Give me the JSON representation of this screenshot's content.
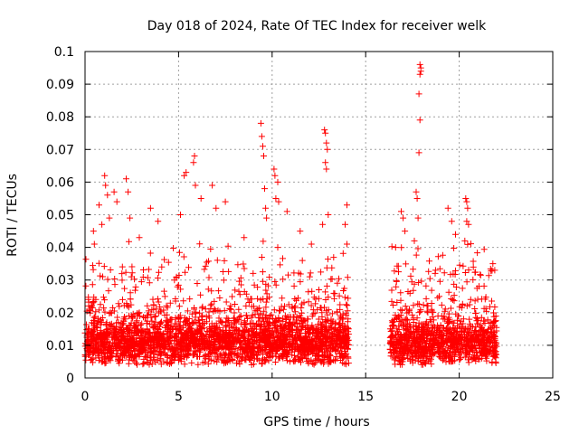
{
  "chart_data": {
    "type": "scatter",
    "title": "Day 018 of 2024, Rate Of TEC Index for receiver welk",
    "xlabel": "GPS time / hours",
    "ylabel": "ROTI / TECUs",
    "xlim": [
      0,
      25
    ],
    "ylim": [
      0,
      0.1
    ],
    "x_ticks": [
      0,
      5,
      10,
      15,
      20,
      25
    ],
    "x_tick_labels": [
      "0",
      "5",
      "10",
      "15",
      "20",
      "25"
    ],
    "y_ticks": [
      0,
      0.01,
      0.02,
      0.03,
      0.04,
      0.05,
      0.06,
      0.07,
      0.08,
      0.09,
      0.1
    ],
    "y_tick_labels": [
      "0",
      "0.01",
      "0.02",
      "0.03",
      "0.04",
      "0.05",
      "0.06",
      "0.07",
      "0.08",
      "0.09",
      "0.1"
    ],
    "grid": true,
    "marker": "+",
    "color": "#ff0000",
    "series": [
      {
        "name": "ROTI",
        "data_segments": [
          {
            "x_start": 0.0,
            "x_end": 14.1,
            "baseline_median": 0.011,
            "typical_max": 0.035
          },
          {
            "x_start": 16.3,
            "x_end": 22.0,
            "baseline_median": 0.011,
            "typical_max": 0.035
          }
        ],
        "notable_points": [
          {
            "x": 0.45,
            "y": 0.045
          },
          {
            "x": 0.5,
            "y": 0.041
          },
          {
            "x": 0.75,
            "y": 0.053
          },
          {
            "x": 0.9,
            "y": 0.047
          },
          {
            "x": 1.05,
            "y": 0.062
          },
          {
            "x": 1.1,
            "y": 0.059
          },
          {
            "x": 1.2,
            "y": 0.056
          },
          {
            "x": 1.3,
            "y": 0.049
          },
          {
            "x": 1.55,
            "y": 0.057
          },
          {
            "x": 1.7,
            "y": 0.054
          },
          {
            "x": 2.2,
            "y": 0.061
          },
          {
            "x": 2.3,
            "y": 0.057
          },
          {
            "x": 2.4,
            "y": 0.049
          },
          {
            "x": 2.9,
            "y": 0.043
          },
          {
            "x": 3.5,
            "y": 0.052
          },
          {
            "x": 3.9,
            "y": 0.048
          },
          {
            "x": 5.1,
            "y": 0.05
          },
          {
            "x": 5.3,
            "y": 0.062
          },
          {
            "x": 5.4,
            "y": 0.063
          },
          {
            "x": 5.8,
            "y": 0.066
          },
          {
            "x": 5.85,
            "y": 0.068
          },
          {
            "x": 5.9,
            "y": 0.059
          },
          {
            "x": 6.2,
            "y": 0.055
          },
          {
            "x": 6.8,
            "y": 0.059
          },
          {
            "x": 7.0,
            "y": 0.052
          },
          {
            "x": 7.5,
            "y": 0.054
          },
          {
            "x": 8.5,
            "y": 0.043
          },
          {
            "x": 9.4,
            "y": 0.078
          },
          {
            "x": 9.45,
            "y": 0.074
          },
          {
            "x": 9.5,
            "y": 0.071
          },
          {
            "x": 9.55,
            "y": 0.068
          },
          {
            "x": 9.6,
            "y": 0.058
          },
          {
            "x": 9.65,
            "y": 0.052
          },
          {
            "x": 9.7,
            "y": 0.049
          },
          {
            "x": 10.1,
            "y": 0.064
          },
          {
            "x": 10.15,
            "y": 0.062
          },
          {
            "x": 10.2,
            "y": 0.055
          },
          {
            "x": 10.3,
            "y": 0.06
          },
          {
            "x": 10.35,
            "y": 0.054
          },
          {
            "x": 10.8,
            "y": 0.051
          },
          {
            "x": 11.5,
            "y": 0.045
          },
          {
            "x": 12.1,
            "y": 0.041
          },
          {
            "x": 12.8,
            "y": 0.076
          },
          {
            "x": 12.85,
            "y": 0.075
          },
          {
            "x": 12.9,
            "y": 0.072
          },
          {
            "x": 12.95,
            "y": 0.07
          },
          {
            "x": 12.85,
            "y": 0.066
          },
          {
            "x": 12.9,
            "y": 0.064
          },
          {
            "x": 12.7,
            "y": 0.047
          },
          {
            "x": 13.0,
            "y": 0.05
          },
          {
            "x": 14.0,
            "y": 0.053
          },
          {
            "x": 13.9,
            "y": 0.047
          },
          {
            "x": 14.0,
            "y": 0.041
          },
          {
            "x": 16.6,
            "y": 0.04
          },
          {
            "x": 16.9,
            "y": 0.051
          },
          {
            "x": 17.0,
            "y": 0.049
          },
          {
            "x": 17.1,
            "y": 0.045
          },
          {
            "x": 17.7,
            "y": 0.057
          },
          {
            "x": 17.75,
            "y": 0.055
          },
          {
            "x": 17.8,
            "y": 0.049
          },
          {
            "x": 17.85,
            "y": 0.069
          },
          {
            "x": 17.9,
            "y": 0.079
          },
          {
            "x": 17.85,
            "y": 0.087
          },
          {
            "x": 17.9,
            "y": 0.093
          },
          {
            "x": 17.95,
            "y": 0.094
          },
          {
            "x": 17.95,
            "y": 0.095
          },
          {
            "x": 17.9,
            "y": 0.096
          },
          {
            "x": 17.6,
            "y": 0.042
          },
          {
            "x": 19.4,
            "y": 0.052
          },
          {
            "x": 19.6,
            "y": 0.048
          },
          {
            "x": 19.8,
            "y": 0.044
          },
          {
            "x": 20.35,
            "y": 0.055
          },
          {
            "x": 20.4,
            "y": 0.054
          },
          {
            "x": 20.45,
            "y": 0.052
          },
          {
            "x": 20.4,
            "y": 0.048
          },
          {
            "x": 20.3,
            "y": 0.042
          },
          {
            "x": 20.5,
            "y": 0.047
          },
          {
            "x": 21.8,
            "y": 0.035
          },
          {
            "x": 21.9,
            "y": 0.033
          }
        ]
      }
    ]
  }
}
